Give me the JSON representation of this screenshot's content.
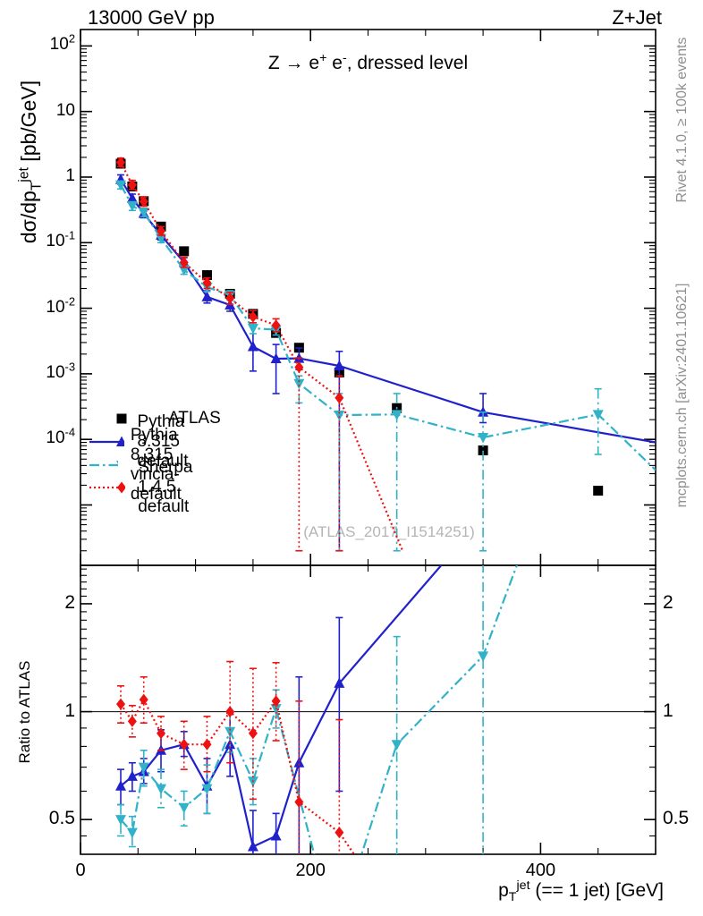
{
  "header": {
    "beam": "13000 GeV pp",
    "process": "Z+Jet"
  },
  "plot_title": "Z → e^{+} e^{-}, dressed level",
  "watermark": "(ATLAS_2017_I1514251)",
  "side_notes": {
    "top": "Rivet 4.1.0, ≥ 100k events",
    "bottom": "mcplots.cern.ch [arXiv:2401.10621]"
  },
  "colors": {
    "atlas": "#000000",
    "pythia_default": "#2121cc",
    "pythia_vincia": "#31b2c9",
    "sherpa": "#ee1111",
    "side_note": "#8f8f8f",
    "watermark": "#b5b5b5",
    "frame": "#000000"
  },
  "legend": {
    "entries": [
      {
        "label": "ATLAS",
        "marker": "square",
        "line": "none",
        "color_key": "atlas"
      },
      {
        "label": "Pythia 8.315 default",
        "marker": "triangle-up",
        "line": "solid",
        "color_key": "pythia_default"
      },
      {
        "label": "Pythia 8.315 vincia-default",
        "marker": "triangle-down",
        "line": "dashdot",
        "color_key": "pythia_vincia"
      },
      {
        "label": "Sherpa 1.4.5 default",
        "marker": "diamond",
        "line": "dot",
        "color_key": "sherpa"
      }
    ]
  },
  "chart_data": [
    {
      "type": "line",
      "panel": "main",
      "ylabel": "dσ/dp_{T}^{jet} [pb/GeV]",
      "y_scale": "log",
      "y_range": [
        1.2e-06,
        178
      ],
      "x_range": [
        0,
        500
      ],
      "grid": false,
      "y_ticks": [
        {
          "v": 100,
          "label": "10^{2}"
        },
        {
          "v": 10,
          "label": "10"
        },
        {
          "v": 1,
          "label": "1"
        },
        {
          "v": 0.1,
          "label": "10^{-1}"
        },
        {
          "v": 0.01,
          "label": "10^{-2}"
        },
        {
          "v": 0.001,
          "label": "10^{-3}"
        },
        {
          "v": 0.0001,
          "label": "10^{-4}"
        }
      ],
      "x": [
        35,
        45,
        55,
        70,
        90,
        110,
        130,
        150,
        170,
        190,
        225,
        275,
        350,
        450
      ],
      "series": [
        {
          "name": "ATLAS",
          "color_key": "atlas",
          "marker": "square",
          "line": "none",
          "values": [
            1.6,
            0.72,
            0.43,
            0.176,
            0.074,
            0.032,
            0.0166,
            0.0082,
            0.0042,
            0.0025,
            0.00105,
            0.0003,
            6.8e-05,
            1.65e-05
          ],
          "err": null,
          "line_extra": null
        },
        {
          "name": "Pythia 8.315 default",
          "color_key": "pythia_default",
          "marker": "triangle-up",
          "line": "solid",
          "values": [
            0.92,
            0.475,
            0.28,
            0.13,
            0.05,
            0.0149,
            0.0112,
            0.0026,
            0.0017,
            0.00172,
            0.00132,
            null,
            0.00026,
            null
          ],
          "err": [
            [
              0.78,
              1.08
            ],
            [
              0.41,
              0.55
            ],
            [
              0.24,
              0.33
            ],
            [
              0.11,
              0.15
            ],
            [
              0.042,
              0.059
            ],
            [
              0.012,
              0.0185
            ],
            [
              0.009,
              0.014
            ],
            [
              0.0011,
              0.0053
            ],
            [
              0.0005,
              0.0028
            ],
            [
              0.00116,
              0.00247
            ],
            [
              2e-06,
              0.0022
            ],
            null,
            [
              0.00018,
              0.0005
            ],
            null
          ],
          "line_extra": [
            [
              500,
              9e-05
            ]
          ]
        },
        {
          "name": "Pythia 8.315 vincia-default",
          "color_key": "pythia_vincia",
          "marker": "triangle-down",
          "line": "dashdot",
          "values": [
            0.76,
            0.365,
            0.29,
            0.116,
            0.0385,
            0.021,
            0.0158,
            0.00495,
            0.0047,
            0.00071,
            0.000235,
            0.00024,
            0.000107,
            0.00024
          ],
          "err": [
            [
              0.66,
              0.87
            ],
            [
              0.31,
              0.42
            ],
            [
              0.25,
              0.335
            ],
            [
              0.1,
              0.134
            ],
            [
              0.033,
              0.045
            ],
            [
              0.018,
              0.0245
            ],
            [
              0.0135,
              0.0185
            ],
            [
              0.0041,
              0.006
            ],
            [
              0.0039,
              0.0057
            ],
            [
              0.00036,
              0.00093
            ],
            [
              2e-06,
              0.0005
            ],
            [
              2e-06,
              0.0005
            ],
            [
              2e-06,
              0.00026
            ],
            [
              5.9e-05,
              0.00059
            ]
          ],
          "line_extra": [
            [
              500,
              3.4e-05
            ]
          ]
        },
        {
          "name": "Sherpa 1.4.5 default",
          "color_key": "sherpa",
          "marker": "diamond",
          "line": "dot",
          "values": [
            1.67,
            0.76,
            0.425,
            0.15,
            0.05,
            0.0244,
            0.0142,
            0.0074,
            0.0055,
            0.00126,
            0.00043,
            null,
            null,
            null
          ],
          "err": [
            [
              1.45,
              1.95
            ],
            [
              0.65,
              0.89
            ],
            [
              0.36,
              0.5
            ],
            [
              0.13,
              0.175
            ],
            [
              0.042,
              0.06
            ],
            [
              0.02,
              0.029
            ],
            [
              0.0115,
              0.0175
            ],
            [
              0.006,
              0.0092
            ],
            [
              0.0044,
              0.0069
            ],
            [
              2e-06,
              0.00175
            ],
            [
              2e-06,
              0.00093
            ],
            null,
            null,
            null
          ],
          "line_extra": [
            [
              280,
              2e-06
            ]
          ]
        }
      ]
    },
    {
      "type": "line",
      "panel": "ratio",
      "ylabel": "Ratio to ATLAS",
      "xlabel": "p_{T}^{jet} (== 1 jet) [GeV]",
      "y_scale": "log",
      "y_range": [
        0.4,
        2.56
      ],
      "x_range": [
        0,
        500
      ],
      "reference_line": 1,
      "x_tick_labels": [
        {
          "v": 0,
          "label": "0"
        },
        {
          "v": 200,
          "label": "200"
        },
        {
          "v": 400,
          "label": "400"
        }
      ],
      "y_ticks": [
        {
          "v": 2,
          "label": "2"
        },
        {
          "v": 1,
          "label": "1"
        },
        {
          "v": 0.5,
          "label": "0.5"
        }
      ],
      "x": [
        35,
        45,
        55,
        70,
        90,
        110,
        130,
        150,
        170,
        190,
        225,
        275,
        350,
        450
      ],
      "series": [
        {
          "name": "Pythia 8.315 default",
          "color_key": "pythia_default",
          "marker": "triangle-up",
          "line": "solid",
          "values": [
            0.62,
            0.66,
            0.68,
            0.78,
            0.81,
            0.62,
            0.81,
            0.42,
            0.45,
            0.72,
            1.2,
            null,
            null,
            null
          ],
          "err": [
            [
              0.55,
              0.69
            ],
            [
              0.6,
              0.72
            ],
            [
              0.63,
              0.74
            ],
            [
              0.68,
              0.89
            ],
            [
              0.75,
              0.88
            ],
            [
              0.52,
              0.74
            ],
            [
              0.66,
              0.99
            ],
            [
              0.39,
              0.53
            ],
            [
              0.39,
              0.52
            ],
            [
              0.4,
              1.25
            ],
            [
              0.6,
              1.83
            ],
            null,
            null,
            null
          ],
          "line_path": [
            [
              35,
              0.62
            ],
            [
              45,
              0.66
            ],
            [
              55,
              0.68
            ],
            [
              70,
              0.78
            ],
            [
              90,
              0.81
            ],
            [
              110,
              0.62
            ],
            [
              130,
              0.81
            ],
            [
              150,
              0.42
            ],
            [
              170,
              0.45
            ],
            [
              190,
              0.72
            ],
            [
              225,
              1.2
            ],
            [
              322,
              2.75
            ]
          ]
        },
        {
          "name": "Pythia 8.315 vincia-default",
          "color_key": "pythia_vincia",
          "marker": "triangle-down",
          "line": "dashdot",
          "values": [
            0.5,
            0.46,
            0.7,
            0.61,
            0.54,
            0.61,
            0.88,
            0.64,
            1.02,
            null,
            null,
            0.81,
            1.43,
            null
          ],
          "err": [
            [
              0.45,
              0.55
            ],
            [
              0.42,
              0.51
            ],
            [
              0.62,
              0.78
            ],
            [
              0.54,
              0.69
            ],
            [
              0.48,
              0.6
            ],
            [
              0.52,
              0.71
            ],
            [
              0.77,
              1.0
            ],
            [
              0.55,
              0.74
            ],
            [
              0.9,
              1.15
            ],
            null,
            null,
            [
              0.39,
              1.62
            ],
            [
              0.39,
              2.6
            ],
            null
          ],
          "line_path": [
            [
              35,
              0.5
            ],
            [
              45,
              0.46
            ],
            [
              55,
              0.7
            ],
            [
              70,
              0.61
            ],
            [
              90,
              0.54
            ],
            [
              110,
              0.61
            ],
            [
              130,
              0.88
            ],
            [
              150,
              0.64
            ],
            [
              170,
              1.02
            ],
            [
              206,
              0.37
            ],
            null,
            [
              241,
              0.37
            ],
            [
              275,
              0.81
            ],
            [
              350,
              1.43
            ],
            [
              383,
              2.75
            ]
          ]
        },
        {
          "name": "Sherpa 1.4.5 default",
          "color_key": "sherpa",
          "marker": "diamond",
          "line": "dot",
          "values": [
            1.05,
            0.94,
            1.08,
            0.87,
            0.81,
            0.81,
            1.0,
            0.87,
            1.07,
            0.56,
            0.46,
            null,
            null,
            null
          ],
          "err": [
            [
              0.93,
              1.18
            ],
            [
              0.85,
              1.04
            ],
            [
              0.93,
              1.25
            ],
            [
              0.78,
              0.97
            ],
            [
              0.69,
              0.94
            ],
            [
              0.68,
              0.97
            ],
            [
              0.72,
              1.38
            ],
            [
              0.57,
              1.32
            ],
            [
              0.83,
              1.37
            ],
            [
              0.39,
              1.07
            ],
            [
              0.39,
              0.95
            ],
            null,
            null,
            null
          ],
          "line_path": [
            [
              35,
              1.05
            ],
            [
              45,
              0.94
            ],
            [
              55,
              1.08
            ],
            [
              70,
              0.87
            ],
            [
              90,
              0.81
            ],
            [
              110,
              0.81
            ],
            [
              130,
              1.0
            ],
            [
              150,
              0.87
            ],
            [
              170,
              1.07
            ],
            [
              190,
              0.56
            ],
            [
              225,
              0.46
            ],
            [
              250,
              0.35
            ]
          ]
        }
      ]
    }
  ]
}
